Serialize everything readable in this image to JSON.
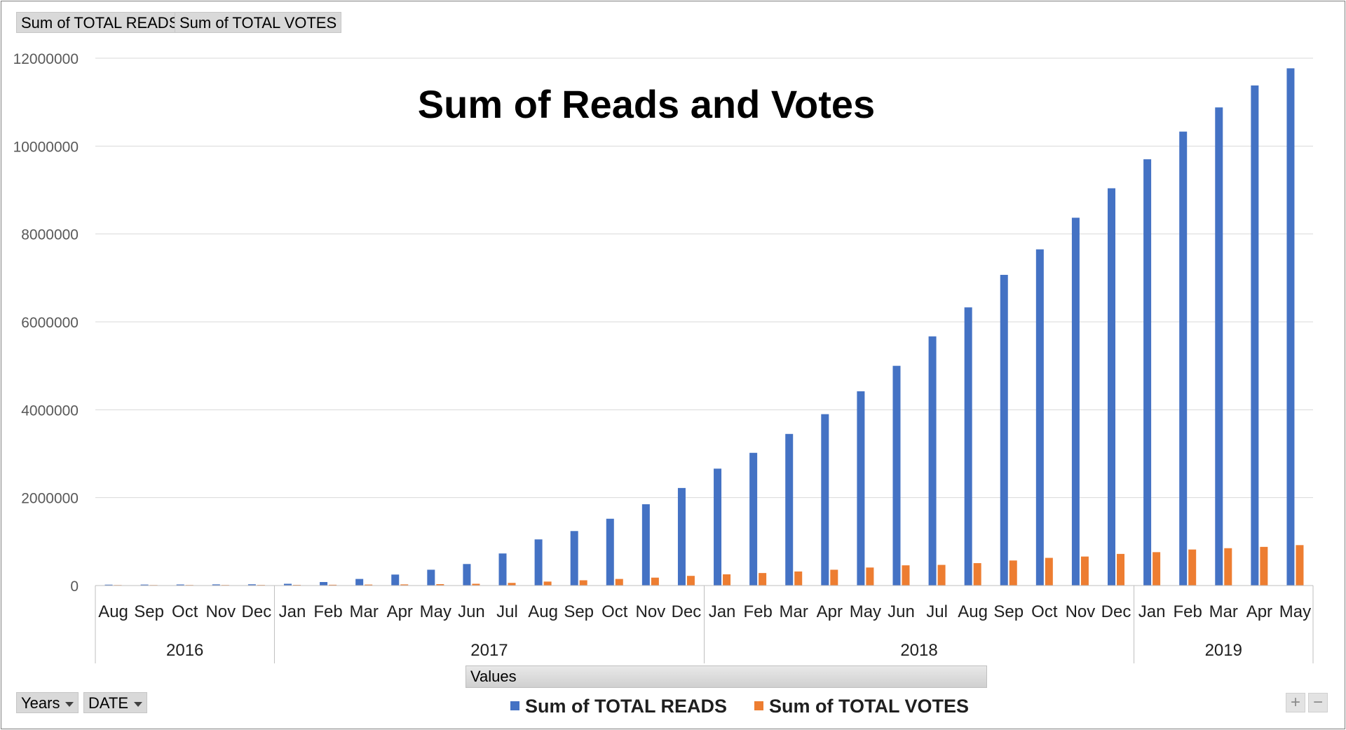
{
  "field_buttons": {
    "reads": "Sum of TOTAL READS",
    "votes": "Sum of TOTAL VOTES",
    "years": "Years",
    "date": "DATE",
    "values": "Values"
  },
  "zoom": {
    "plus": "+",
    "minus": "−"
  },
  "colors": {
    "reads": "#4472C4",
    "votes": "#ED7D31",
    "grid": "#d9d9d9",
    "axis": "#bfbfbf"
  },
  "chart_data": {
    "type": "bar",
    "title": "Sum of Reads and Votes",
    "xlabel": "",
    "ylabel": "",
    "ylim": [
      0,
      12000000
    ],
    "yticks": [
      0,
      2000000,
      4000000,
      6000000,
      8000000,
      10000000,
      12000000
    ],
    "grid": true,
    "legend_position": "bottom",
    "categories": [
      "Aug",
      "Sep",
      "Oct",
      "Nov",
      "Dec",
      "Jan",
      "Feb",
      "Mar",
      "Apr",
      "May",
      "Jun",
      "Jul",
      "Aug",
      "Sep",
      "Oct",
      "Nov",
      "Dec",
      "Jan",
      "Feb",
      "Mar",
      "Apr",
      "May",
      "Jun",
      "Jul",
      "Aug",
      "Sep",
      "Oct",
      "Nov",
      "Dec",
      "Jan",
      "Feb",
      "Mar",
      "Apr",
      "May"
    ],
    "year_groups": [
      {
        "label": "2016",
        "count": 5
      },
      {
        "label": "2017",
        "count": 12
      },
      {
        "label": "2018",
        "count": 12
      },
      {
        "label": "2019",
        "count": 5
      }
    ],
    "series": [
      {
        "name": "Sum of TOTAL READS",
        "values": [
          20000,
          22000,
          24000,
          26000,
          28000,
          40000,
          80000,
          150000,
          250000,
          360000,
          490000,
          730000,
          1050000,
          1240000,
          1520000,
          1850000,
          2220000,
          2660000,
          3020000,
          3450000,
          3900000,
          4420000,
          5000000,
          5670000,
          6330000,
          7070000,
          7650000,
          8370000,
          9040000,
          9700000,
          10330000,
          10880000,
          11380000,
          11770000
        ]
      },
      {
        "name": "Sum of TOTAL VOTES",
        "values": [
          12000,
          12000,
          13000,
          13000,
          14000,
          15000,
          18000,
          22000,
          26000,
          32000,
          40000,
          60000,
          90000,
          120000,
          150000,
          180000,
          220000,
          255000,
          285000,
          320000,
          360000,
          410000,
          460000,
          470000,
          510000,
          570000,
          630000,
          660000,
          720000,
          760000,
          820000,
          850000,
          880000,
          920000
        ]
      }
    ]
  }
}
